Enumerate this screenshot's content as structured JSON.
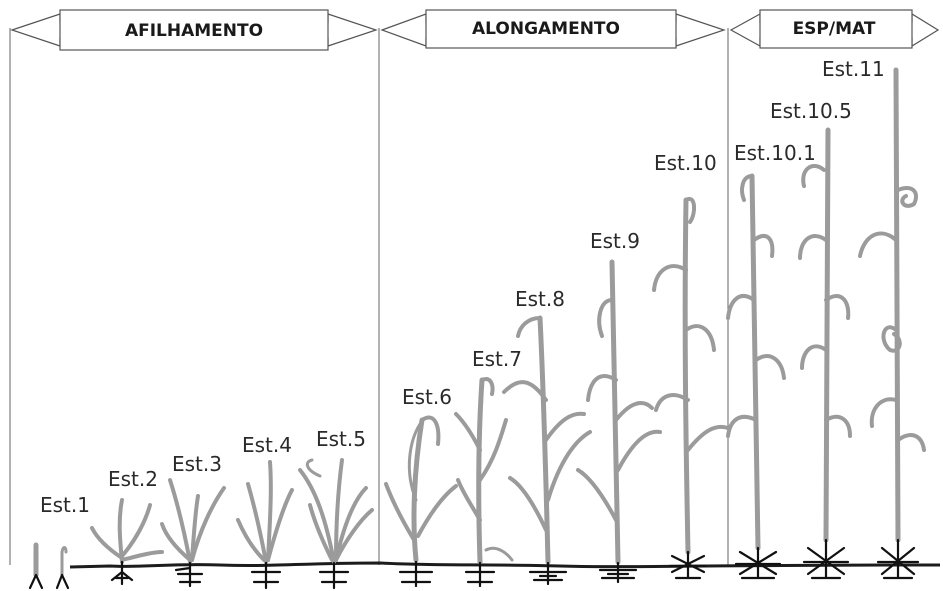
{
  "colors": {
    "plant": "#9b9b9b",
    "soil": "#1c1c1c",
    "text": "#2a2a2a",
    "frame": "#555555"
  },
  "phases": [
    {
      "label": "AFILHAMENTO"
    },
    {
      "label": "ALONGAMENTO"
    },
    {
      "label": "ESP/MAT"
    }
  ],
  "stages": [
    {
      "label": "Est.1"
    },
    {
      "label": "Est.2"
    },
    {
      "label": "Est.3"
    },
    {
      "label": "Est.4"
    },
    {
      "label": "Est.5"
    },
    {
      "label": "Est.6"
    },
    {
      "label": "Est.7"
    },
    {
      "label": "Est.8"
    },
    {
      "label": "Est.9"
    },
    {
      "label": "Est.10"
    },
    {
      "label": "Est.10.1"
    },
    {
      "label": "Est.10.5"
    },
    {
      "label": "Est.11"
    }
  ]
}
